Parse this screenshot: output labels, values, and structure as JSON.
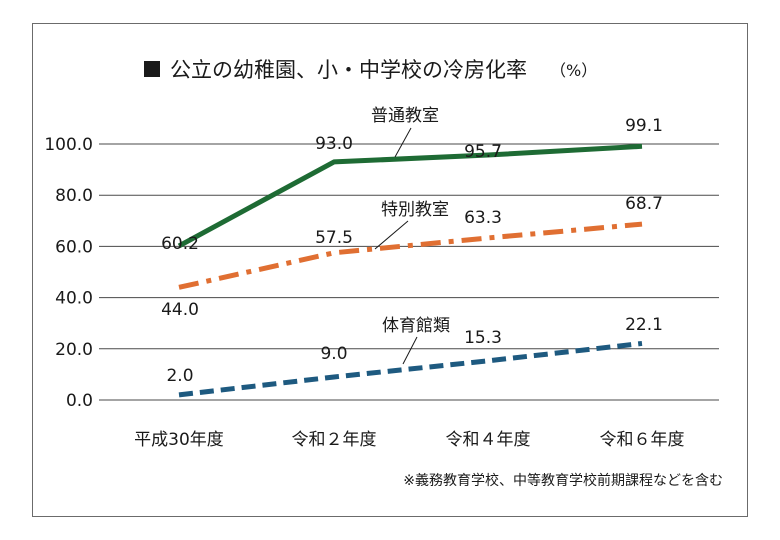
{
  "chart_data": {
    "type": "line",
    "title": "公立の幼稚園、小・中学校の冷房化率",
    "unit": "（%）",
    "categories": [
      "平成30年度",
      "令和２年度",
      "令和４年度",
      "令和６年度"
    ],
    "ylim": [
      0,
      100
    ],
    "yticks": [
      "0.0",
      "20.0",
      "40.0",
      "60.0",
      "80.0",
      "100.0"
    ],
    "grid": true,
    "series": [
      {
        "name": "普通教室",
        "values": [
          60.2,
          93.0,
          95.7,
          99.1
        ],
        "labels": [
          "60.2",
          "93.0",
          "95.7",
          "99.1"
        ],
        "color": "#1e6b34",
        "style": "solid"
      },
      {
        "name": "特別教室",
        "values": [
          44.0,
          57.5,
          63.3,
          68.7
        ],
        "labels": [
          "44.0",
          "57.5",
          "63.3",
          "68.7"
        ],
        "color": "#e06f32",
        "style": "dashdot"
      },
      {
        "name": "体育館類",
        "values": [
          2.0,
          9.0,
          15.3,
          22.1
        ],
        "labels": [
          "2.0",
          "9.0",
          "15.3",
          "22.1"
        ],
        "color": "#1e5a80",
        "style": "dashed"
      }
    ],
    "note": "※義務教育学校、中等教育学校前期課程などを含む"
  }
}
